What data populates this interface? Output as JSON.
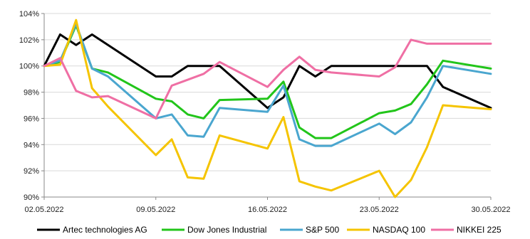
{
  "chart_data": {
    "type": "line",
    "title": "",
    "xlabel": "",
    "ylabel": "",
    "ylim": [
      90,
      104
    ],
    "y_ticks": [
      "90%",
      "92%",
      "94%",
      "96%",
      "98%",
      "100%",
      "102%",
      "104%"
    ],
    "x_ticks": [
      "02.05.2022",
      "09.05.2022",
      "16.05.2022",
      "23.05.2022",
      "30.05.2022"
    ],
    "x_range": [
      "02.05.2022",
      "30.05.2022"
    ],
    "grid": "horizontal",
    "legend_position": "bottom",
    "series": [
      {
        "name": "Artec technologies AG",
        "color": "#000000",
        "points": [
          [
            "02.05.2022",
            100.0
          ],
          [
            "03.05.2022",
            102.4
          ],
          [
            "04.05.2022",
            101.6
          ],
          [
            "05.05.2022",
            102.4
          ],
          [
            "09.05.2022",
            99.2
          ],
          [
            "10.05.2022",
            99.2
          ],
          [
            "11.05.2022",
            100.0
          ],
          [
            "12.05.2022",
            100.0
          ],
          [
            "13.05.2022",
            100.0
          ],
          [
            "16.05.2022",
            96.8
          ],
          [
            "17.05.2022",
            97.6
          ],
          [
            "18.05.2022",
            100.0
          ],
          [
            "19.05.2022",
            99.2
          ],
          [
            "20.05.2022",
            100.0
          ],
          [
            "23.05.2022",
            100.0
          ],
          [
            "24.05.2022",
            100.0
          ],
          [
            "25.05.2022",
            100.0
          ],
          [
            "26.05.2022",
            100.0
          ],
          [
            "27.05.2022",
            98.4
          ],
          [
            "30.05.2022",
            96.8
          ]
        ]
      },
      {
        "name": "Dow Jones Industrial",
        "color": "#22c51a",
        "points": [
          [
            "02.05.2022",
            100.0
          ],
          [
            "03.05.2022",
            100.3
          ],
          [
            "04.05.2022",
            103.1
          ],
          [
            "05.05.2022",
            99.8
          ],
          [
            "06.05.2022",
            99.5
          ],
          [
            "09.05.2022",
            97.5
          ],
          [
            "10.05.2022",
            97.3
          ],
          [
            "11.05.2022",
            96.3
          ],
          [
            "12.05.2022",
            96.0
          ],
          [
            "13.05.2022",
            97.4
          ],
          [
            "16.05.2022",
            97.5
          ],
          [
            "17.05.2022",
            98.8
          ],
          [
            "18.05.2022",
            95.3
          ],
          [
            "19.05.2022",
            94.5
          ],
          [
            "20.05.2022",
            94.5
          ],
          [
            "23.05.2022",
            96.4
          ],
          [
            "24.05.2022",
            96.6
          ],
          [
            "25.05.2022",
            97.1
          ],
          [
            "26.05.2022",
            98.6
          ],
          [
            "27.05.2022",
            100.4
          ],
          [
            "30.05.2022",
            99.8
          ]
        ]
      },
      {
        "name": "S&P 500",
        "color": "#4aa6cf",
        "points": [
          [
            "02.05.2022",
            100.0
          ],
          [
            "03.05.2022",
            100.4
          ],
          [
            "04.05.2022",
            103.2
          ],
          [
            "05.05.2022",
            99.8
          ],
          [
            "06.05.2022",
            99.2
          ],
          [
            "09.05.2022",
            96.0
          ],
          [
            "10.05.2022",
            96.3
          ],
          [
            "11.05.2022",
            94.7
          ],
          [
            "12.05.2022",
            94.6
          ],
          [
            "13.05.2022",
            96.8
          ],
          [
            "16.05.2022",
            96.5
          ],
          [
            "17.05.2022",
            98.5
          ],
          [
            "18.05.2022",
            94.4
          ],
          [
            "19.05.2022",
            93.9
          ],
          [
            "20.05.2022",
            93.9
          ],
          [
            "23.05.2022",
            95.6
          ],
          [
            "24.05.2022",
            94.8
          ],
          [
            "25.05.2022",
            95.7
          ],
          [
            "26.05.2022",
            97.6
          ],
          [
            "27.05.2022",
            100.0
          ],
          [
            "30.05.2022",
            99.4
          ]
        ]
      },
      {
        "name": "NASDAQ 100",
        "color": "#f5c400",
        "points": [
          [
            "02.05.2022",
            100.0
          ],
          [
            "03.05.2022",
            100.1
          ],
          [
            "04.05.2022",
            103.5
          ],
          [
            "05.05.2022",
            98.3
          ],
          [
            "06.05.2022",
            96.9
          ],
          [
            "09.05.2022",
            93.2
          ],
          [
            "10.05.2022",
            94.4
          ],
          [
            "11.05.2022",
            91.5
          ],
          [
            "12.05.2022",
            91.4
          ],
          [
            "13.05.2022",
            94.7
          ],
          [
            "16.05.2022",
            93.7
          ],
          [
            "17.05.2022",
            96.1
          ],
          [
            "18.05.2022",
            91.2
          ],
          [
            "19.05.2022",
            90.8
          ],
          [
            "20.05.2022",
            90.5
          ],
          [
            "23.05.2022",
            92.0
          ],
          [
            "24.05.2022",
            90.0
          ],
          [
            "25.05.2022",
            91.3
          ],
          [
            "26.05.2022",
            93.8
          ],
          [
            "27.05.2022",
            97.0
          ],
          [
            "30.05.2022",
            96.7
          ]
        ]
      },
      {
        "name": "NIKKEI 225",
        "color": "#ef6fa4",
        "points": [
          [
            "02.05.2022",
            100.0
          ],
          [
            "03.05.2022",
            100.6
          ],
          [
            "04.05.2022",
            98.1
          ],
          [
            "05.05.2022",
            97.6
          ],
          [
            "06.05.2022",
            97.7
          ],
          [
            "09.05.2022",
            96.0
          ],
          [
            "10.05.2022",
            98.5
          ],
          [
            "12.05.2022",
            99.4
          ],
          [
            "13.05.2022",
            100.3
          ],
          [
            "16.05.2022",
            98.4
          ],
          [
            "17.05.2022",
            99.7
          ],
          [
            "18.05.2022",
            100.7
          ],
          [
            "19.05.2022",
            99.7
          ],
          [
            "20.05.2022",
            99.5
          ],
          [
            "23.05.2022",
            99.2
          ],
          [
            "24.05.2022",
            99.9
          ],
          [
            "25.05.2022",
            102.0
          ],
          [
            "26.05.2022",
            101.7
          ],
          [
            "27.05.2022",
            101.7
          ],
          [
            "30.05.2022",
            101.7
          ]
        ]
      }
    ]
  }
}
